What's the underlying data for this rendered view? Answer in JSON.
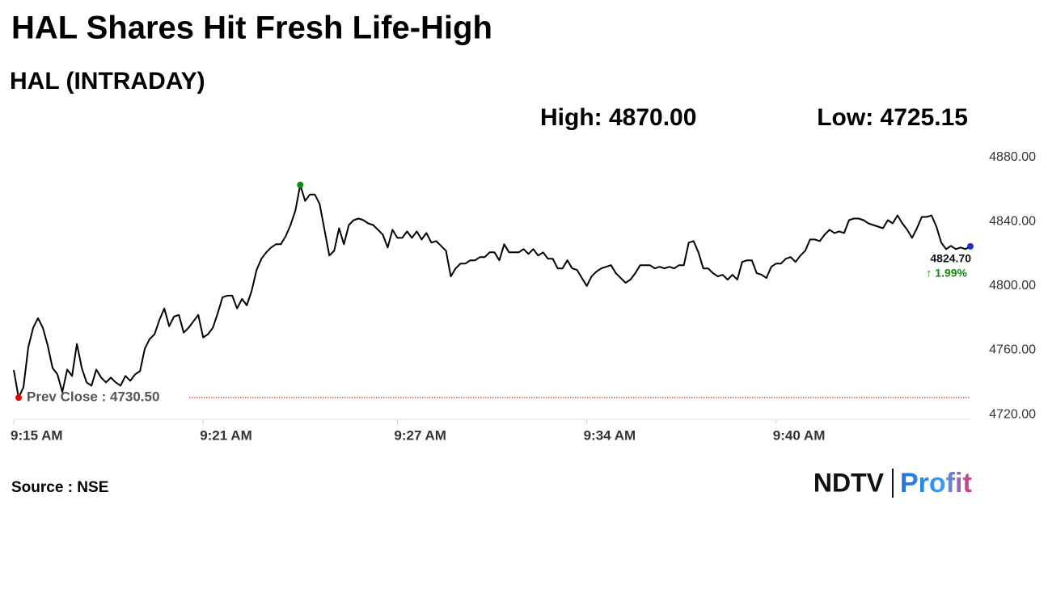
{
  "chart_data": {
    "type": "line",
    "title": "HAL Shares Hit Fresh Life-High",
    "subtitle": "HAL (INTRADAY)",
    "stats": [
      "High: 4870.00",
      "Low: 4725.15"
    ],
    "prev_close": 4730.5,
    "prev_close_label": "Prev Close : 4730.50",
    "last_label": "4824.70",
    "change_label": "↑ 1.99%",
    "source": "Source : NSE",
    "logo": [
      "NDTV",
      "Profit"
    ],
    "color": "#000000",
    "values": [
      4747.7,
      4730.5,
      4737,
      4762,
      4774,
      4780,
      4774,
      4763,
      4749,
      4745,
      4734,
      4748,
      4744,
      4764,
      4749,
      4740,
      4738,
      4748,
      4743,
      4740,
      4743,
      4740,
      4738,
      4744,
      4741,
      4745,
      4747,
      4761,
      4767,
      4770,
      4779,
      4786,
      4775,
      4781,
      4782,
      4771,
      4774,
      4778,
      4782,
      4768,
      4770,
      4774,
      4783,
      4793,
      4794,
      4794,
      4786,
      4792,
      4788,
      4797,
      4810,
      4817,
      4821,
      4824,
      4826,
      4826,
      4831,
      4838,
      4847,
      4863,
      4853,
      4857,
      4857,
      4851,
      4835,
      4819,
      4822,
      4836,
      4826,
      4838,
      4841,
      4842,
      4841,
      4839,
      4838,
      4835,
      4832,
      4824,
      4835,
      4830,
      4830,
      4834,
      4830,
      4834,
      4829,
      4833,
      4827,
      4828,
      4825,
      4822,
      4806,
      4811,
      4814,
      4814,
      4816,
      4816,
      4818,
      4818,
      4821,
      4821,
      4816,
      4826,
      4821,
      4821,
      4821,
      4823,
      4820,
      4823,
      4819,
      4821,
      4817,
      4817,
      4811,
      4811,
      4816,
      4811,
      4810,
      4805,
      4800,
      4806,
      4809,
      4811,
      4812,
      4813,
      4808,
      4805,
      4802,
      4804,
      4808,
      4813,
      4813,
      4813,
      4811,
      4812,
      4811,
      4812,
      4811,
      4813,
      4813,
      4827,
      4828,
      4821,
      4811,
      4811,
      4808,
      4806,
      4807,
      4804,
      4807,
      4804,
      4815,
      4816,
      4816,
      4808,
      4807,
      4805,
      4812,
      4814,
      4814,
      4817,
      4818,
      4815,
      4819,
      4822,
      4829,
      4829,
      4828,
      4832,
      4835,
      4833,
      4834,
      4833,
      4841,
      4842,
      4842,
      4841,
      4839,
      4838,
      4837,
      4836,
      4841,
      4839,
      4844,
      4839,
      4835,
      4830,
      4836,
      4843,
      4843,
      4844,
      4837,
      4827,
      4823,
      4825,
      4823,
      4824,
      4823,
      4824.7
    ],
    "xlim": [
      0,
      197
    ],
    "xticks": [
      {
        "value": 0,
        "label": "9:15 AM"
      },
      {
        "value": 39,
        "label": "9:21 AM"
      },
      {
        "value": 79,
        "label": "9:27 AM"
      },
      {
        "value": 118,
        "label": "9:34 AM"
      },
      {
        "value": 157,
        "label": "9:40 AM"
      }
    ],
    "ylim": [
      4717,
      4880
    ],
    "yticks": [
      {
        "value": 4720,
        "label": "4720.00"
      },
      {
        "value": 4760,
        "label": "4760.00"
      },
      {
        "value": 4800,
        "label": "4800.00"
      },
      {
        "value": 4840,
        "label": "4840.00"
      },
      {
        "value": 4880,
        "label": "4880.00"
      }
    ],
    "grid": false
  }
}
